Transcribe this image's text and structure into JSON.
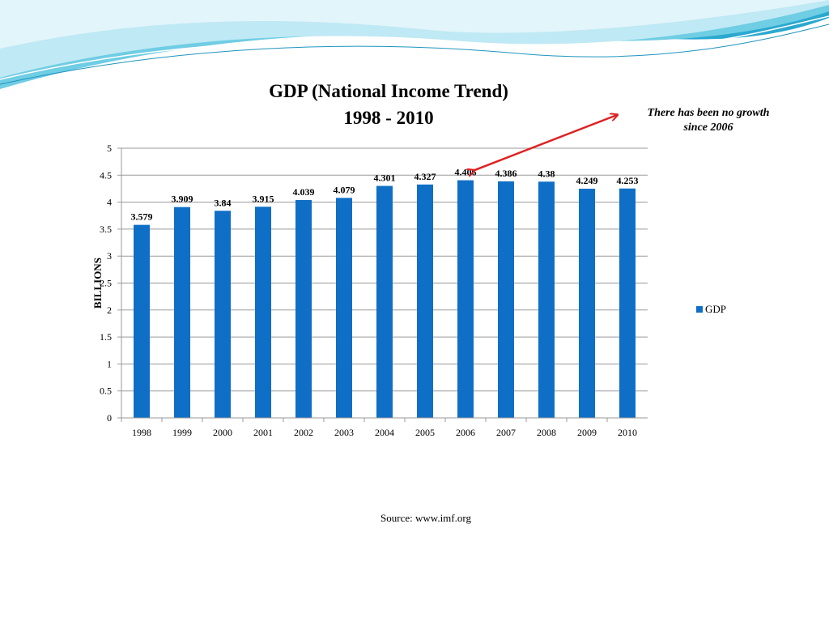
{
  "colors": {
    "bar": "#0F6FC6",
    "arrow": "#E02020",
    "grid": "#9A9A9A",
    "wave_light": "#BFE9F4",
    "wave_mid": "#6FCDE4",
    "wave_dark": "#2AA8D0"
  },
  "annotation": {
    "line1": "There has been no growth",
    "line2": "since 2006"
  },
  "source": "Source: www.imf.org",
  "chart_data": {
    "type": "bar",
    "title": "GDP (National Income Trend)",
    "subtitle": "1998 - 2010",
    "categories": [
      "1998",
      "1999",
      "2000",
      "2001",
      "2002",
      "2003",
      "2004",
      "2005",
      "2006",
      "2007",
      "2008",
      "2009",
      "2010"
    ],
    "series": [
      {
        "name": "GDP",
        "values": [
          3.579,
          3.909,
          3.84,
          3.915,
          4.039,
          4.079,
          4.301,
          4.327,
          4.406,
          4.386,
          4.38,
          4.249,
          4.253
        ],
        "labels": [
          "3.579",
          "3.909",
          "3.84",
          "3.915",
          "4.039",
          "4.079",
          "4.301",
          "4.327",
          "4.406",
          "4.386",
          "4.38",
          "4.249",
          "4.253"
        ]
      }
    ],
    "xlabel": "",
    "ylabel": "BILLIONS",
    "ylim": [
      0,
      5
    ],
    "yticks": [
      "0",
      "0.5",
      "1",
      "1.5",
      "2",
      "2.5",
      "3",
      "3.5",
      "4",
      "4.5",
      "5"
    ],
    "grid": true,
    "legend": "right"
  }
}
